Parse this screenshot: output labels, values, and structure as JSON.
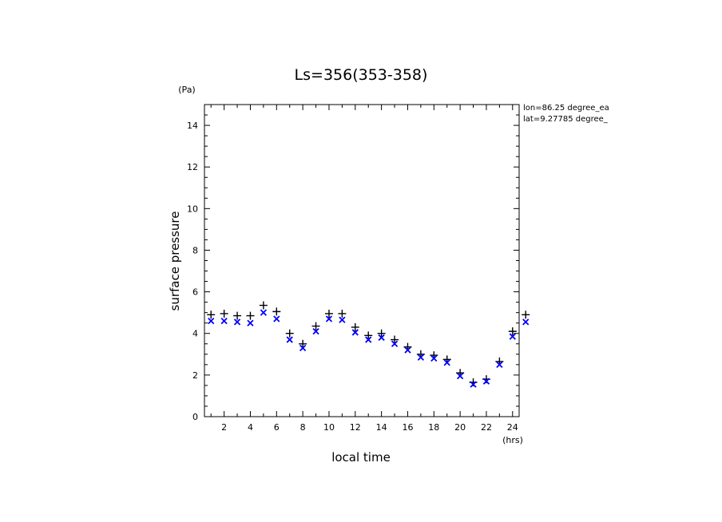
{
  "chart_data": {
    "type": "scatter",
    "title": "Ls=356(353-358)",
    "xlabel": "local time",
    "ylabel": "surface pressure",
    "x_unit": "(hrs)",
    "y_unit": "(Pa)",
    "xlim": [
      0.5,
      24.5
    ],
    "ylim": [
      0,
      15
    ],
    "x_ticks": [
      2,
      4,
      6,
      8,
      10,
      12,
      14,
      16,
      18,
      20,
      22,
      24
    ],
    "y_ticks": [
      0,
      2,
      4,
      6,
      8,
      10,
      12,
      14
    ],
    "annotations": [
      "lon=86.25 degree_ea",
      "lat=9.27785 degree_"
    ],
    "series": [
      {
        "marker": "plus",
        "color": "#000000",
        "x": [
          1,
          2,
          3,
          4,
          5,
          6,
          7,
          8,
          9,
          10,
          11,
          12,
          13,
          14,
          15,
          16,
          17,
          18,
          19,
          20,
          21,
          22,
          23,
          24,
          25
        ],
        "values": [
          4.9,
          4.95,
          4.85,
          4.85,
          5.35,
          5.05,
          4.0,
          3.5,
          4.35,
          4.95,
          4.95,
          4.3,
          3.9,
          4.0,
          3.7,
          3.35,
          3.0,
          2.95,
          2.75,
          2.1,
          1.65,
          1.8,
          2.65,
          4.1,
          4.9
        ]
      },
      {
        "marker": "cross",
        "color": "#0000ff",
        "x": [
          1,
          2,
          3,
          4,
          5,
          6,
          7,
          8,
          9,
          10,
          11,
          12,
          13,
          14,
          15,
          16,
          17,
          18,
          19,
          20,
          21,
          22,
          23,
          24,
          25
        ],
        "values": [
          4.6,
          4.6,
          4.55,
          4.5,
          5.0,
          4.7,
          3.7,
          3.3,
          4.1,
          4.7,
          4.65,
          4.05,
          3.7,
          3.8,
          3.5,
          3.2,
          2.85,
          2.8,
          2.6,
          1.95,
          1.55,
          1.7,
          2.5,
          3.85,
          4.55
        ]
      }
    ]
  }
}
